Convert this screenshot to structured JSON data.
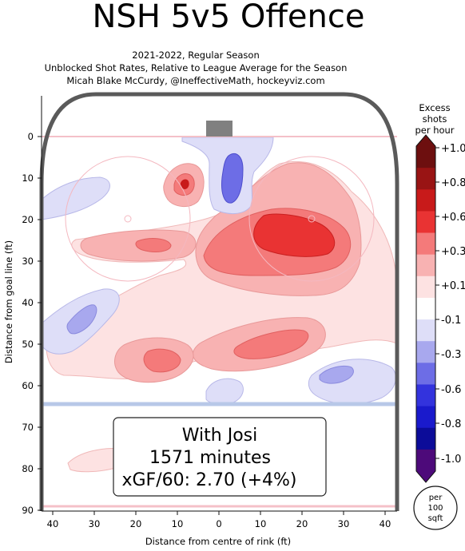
{
  "chart_data": {
    "type": "heatmap",
    "title": "NSH 5v5 Offence",
    "subtitle_lines": [
      "2021-2022, Regular Season",
      "Unblocked Shot Rates, Relative to League Average for the Season",
      "Micah Blake McCurdy, @IneffectiveMath, hockeyviz.com"
    ],
    "xlabel": "Distance from centre of rink (ft)",
    "ylabel": "Distance from goal line (ft)",
    "x_ticks": [
      "40",
      "30",
      "20",
      "10",
      "0",
      "10",
      "20",
      "30",
      "40"
    ],
    "y_ticks": [
      "0",
      "10",
      "20",
      "30",
      "40",
      "50",
      "60",
      "70",
      "80",
      "90"
    ],
    "xlim": [
      -43,
      43
    ],
    "ylim": [
      90,
      -5
    ],
    "colorbar": {
      "label_lines": [
        "Excess",
        "shots",
        "per hour"
      ],
      "ticks": [
        "+1.0",
        "+0.8",
        "+0.6",
        "+0.3",
        "+0.1",
        "-0.1",
        "-0.3",
        "-0.6",
        "-0.8",
        "-1.0"
      ],
      "unit_lines": [
        "per",
        "100",
        "sqft"
      ],
      "colors": [
        "#6d0f0f",
        "#991414",
        "#c81a1a",
        "#e93333",
        "#f47a7a",
        "#f8b2b2",
        "#fde2e2",
        "#ffffff",
        "#dedef8",
        "#a8a8ee",
        "#6d6de6",
        "#3333dd",
        "#1a1acc",
        "#0c0c99",
        "#4d0a7a"
      ]
    },
    "annotation": {
      "player": "With Josi",
      "minutes": "1571 minutes",
      "xgf": "xGF/60: 2.70 (+4%)"
    },
    "regions": [
      {
        "kind": "excess",
        "sign": "+",
        "level": 1,
        "centre": [
          -9,
          12
        ],
        "value": 0.3
      },
      {
        "kind": "excess",
        "sign": "-",
        "level": 2,
        "centre": [
          -3,
          12
        ],
        "value": -0.3
      },
      {
        "kind": "excess",
        "sign": "+",
        "level": 1,
        "centre": [
          17,
          27
        ],
        "value": 0.6
      },
      {
        "kind": "excess",
        "sign": "+",
        "level": 1,
        "centre": [
          -17,
          26
        ],
        "value": 0.2
      },
      {
        "kind": "excess",
        "sign": "-",
        "level": 1,
        "centre": [
          -33,
          44
        ],
        "value": -0.2
      },
      {
        "kind": "excess",
        "sign": "+",
        "level": 1,
        "centre": [
          15,
          48
        ],
        "value": 0.3
      },
      {
        "kind": "excess",
        "sign": "+",
        "level": 1,
        "centre": [
          -13,
          51
        ],
        "value": 0.2
      },
      {
        "kind": "excess",
        "sign": "-",
        "level": 1,
        "centre": [
          31,
          58
        ],
        "value": -0.2
      },
      {
        "kind": "excess",
        "sign": "-",
        "level": 1,
        "centre": [
          0,
          61
        ],
        "value": -0.1
      }
    ]
  }
}
